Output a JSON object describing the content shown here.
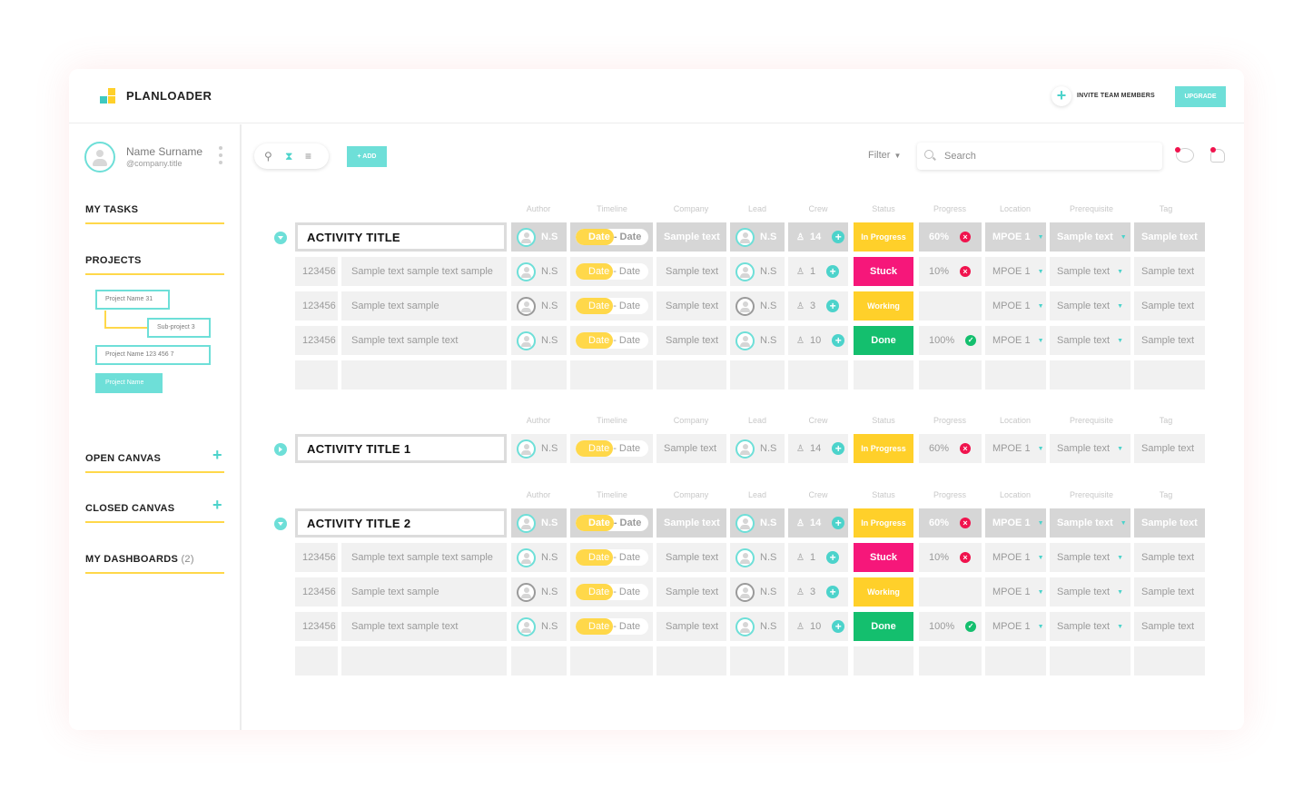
{
  "app": {
    "brand": "PLANLOADER"
  },
  "header": {
    "invite_label": "INVITE TEAM MEMBERS",
    "upgrade_label": "UPGRADE"
  },
  "user": {
    "name": "Name Surname",
    "handle": "@company.title"
  },
  "sidebar": {
    "my_tasks": "MY TASKS",
    "projects": "PROJECTS",
    "project_tree": [
      "Project Name 31",
      "Sub-project 3",
      "Project Name 123 456 7",
      "Project Name"
    ],
    "open_canvas": "OPEN CANVAS",
    "closed_canvas": "CLOSED CANVAS",
    "my_dashboards": "MY DASHBOARDS",
    "dashboards_count": "(2)"
  },
  "toolbar": {
    "add_label": "+ ADD",
    "filter_label": "Filter",
    "search_placeholder": "Search"
  },
  "columns": [
    "Author",
    "Timeline",
    "Company",
    "Lead",
    "Crew",
    "Status",
    "Progress",
    "Location",
    "Prerequisite",
    "Tag"
  ],
  "colors": {
    "accent": "#6edfd8",
    "yellow": "#ffd02a",
    "stuck": "#f6177a",
    "done": "#14bf6e",
    "red": "#f0134d"
  },
  "groups": [
    {
      "title": "ACTIVITY TITLE",
      "expanded": true,
      "summary": {
        "author": "N.S",
        "date_start": "Date",
        "date_end": "Date",
        "company": "Sample text",
        "lead": "N.S",
        "crew": "14",
        "status": "In Progress",
        "progress": "60%",
        "location": "MPOE 1",
        "prereq": "Sample text",
        "tag": "Sample text"
      },
      "rows": [
        {
          "id": "123456",
          "name": "Sample text sample text sample",
          "author": "N.S",
          "author_gray": false,
          "date_start": "Date",
          "date_end": "Date",
          "company": "Sample text",
          "lead": "N.S",
          "lead_gray": false,
          "crew": "1",
          "status": "Stuck",
          "status_class": "st-pink",
          "progress": "10%",
          "prog_icon": "x",
          "location": "MPOE 1",
          "prereq": "Sample text",
          "tag": "Sample text"
        },
        {
          "id": "123456",
          "name": "Sample text sample",
          "author": "N.S",
          "author_gray": true,
          "date_start": "Date",
          "date_end": "Date",
          "company": "Sample text",
          "lead": "N.S",
          "lead_gray": true,
          "crew": "3",
          "status": "Working",
          "status_class": "st-yellow",
          "progress": "",
          "prog_icon": "",
          "location": "MPOE 1",
          "prereq": "Sample text",
          "tag": "Sample text"
        },
        {
          "id": "123456",
          "name": "Sample text sample text",
          "author": "N.S",
          "author_gray": false,
          "date_start": "Date",
          "date_end": "Date",
          "company": "Sample text",
          "lead": "N.S",
          "lead_gray": false,
          "crew": "10",
          "status": "Done",
          "status_class": "st-green",
          "progress": "100%",
          "prog_icon": "check",
          "location": "MPOE 1",
          "prereq": "Sample text",
          "tag": "Sample text"
        }
      ],
      "empty_rows": 1
    },
    {
      "title": "ACTIVITY TITLE 1",
      "expanded": false,
      "summary": {
        "author": "N.S",
        "date_start": "Date",
        "date_end": "Date",
        "company": "Sample text",
        "lead": "N.S",
        "crew": "14",
        "status": "In Progress",
        "progress": "60%",
        "location": "MPOE 1",
        "prereq": "Sample text",
        "tag": "Sample text"
      },
      "rows": [],
      "empty_rows": 0
    },
    {
      "title": "ACTIVITY TITLE 2",
      "expanded": true,
      "summary": {
        "author": "N.S",
        "date_start": "Date",
        "date_end": "Date",
        "company": "Sample text",
        "lead": "N.S",
        "crew": "14",
        "status": "In Progress",
        "progress": "60%",
        "location": "MPOE 1",
        "prereq": "Sample text",
        "tag": "Sample text"
      },
      "rows": [
        {
          "id": "123456",
          "name": "Sample text sample text sample",
          "author": "N.S",
          "author_gray": false,
          "date_start": "Date",
          "date_end": "Date",
          "company": "Sample text",
          "lead": "N.S",
          "lead_gray": false,
          "crew": "1",
          "status": "Stuck",
          "status_class": "st-pink",
          "progress": "10%",
          "prog_icon": "x",
          "location": "MPOE 1",
          "prereq": "Sample text",
          "tag": "Sample text"
        },
        {
          "id": "123456",
          "name": "Sample text sample",
          "author": "N.S",
          "author_gray": true,
          "date_start": "Date",
          "date_end": "Date",
          "company": "Sample text",
          "lead": "N.S",
          "lead_gray": true,
          "crew": "3",
          "status": "Working",
          "status_class": "st-yellow",
          "progress": "",
          "prog_icon": "",
          "location": "MPOE 1",
          "prereq": "Sample text",
          "tag": "Sample text"
        },
        {
          "id": "123456",
          "name": "Sample text sample text",
          "author": "N.S",
          "author_gray": false,
          "date_start": "Date",
          "date_end": "Date",
          "company": "Sample text",
          "lead": "N.S",
          "lead_gray": false,
          "crew": "10",
          "status": "Done",
          "status_class": "st-green",
          "progress": "100%",
          "prog_icon": "check",
          "location": "MPOE 1",
          "prereq": "Sample text",
          "tag": "Sample text"
        }
      ],
      "empty_rows": 1
    }
  ]
}
